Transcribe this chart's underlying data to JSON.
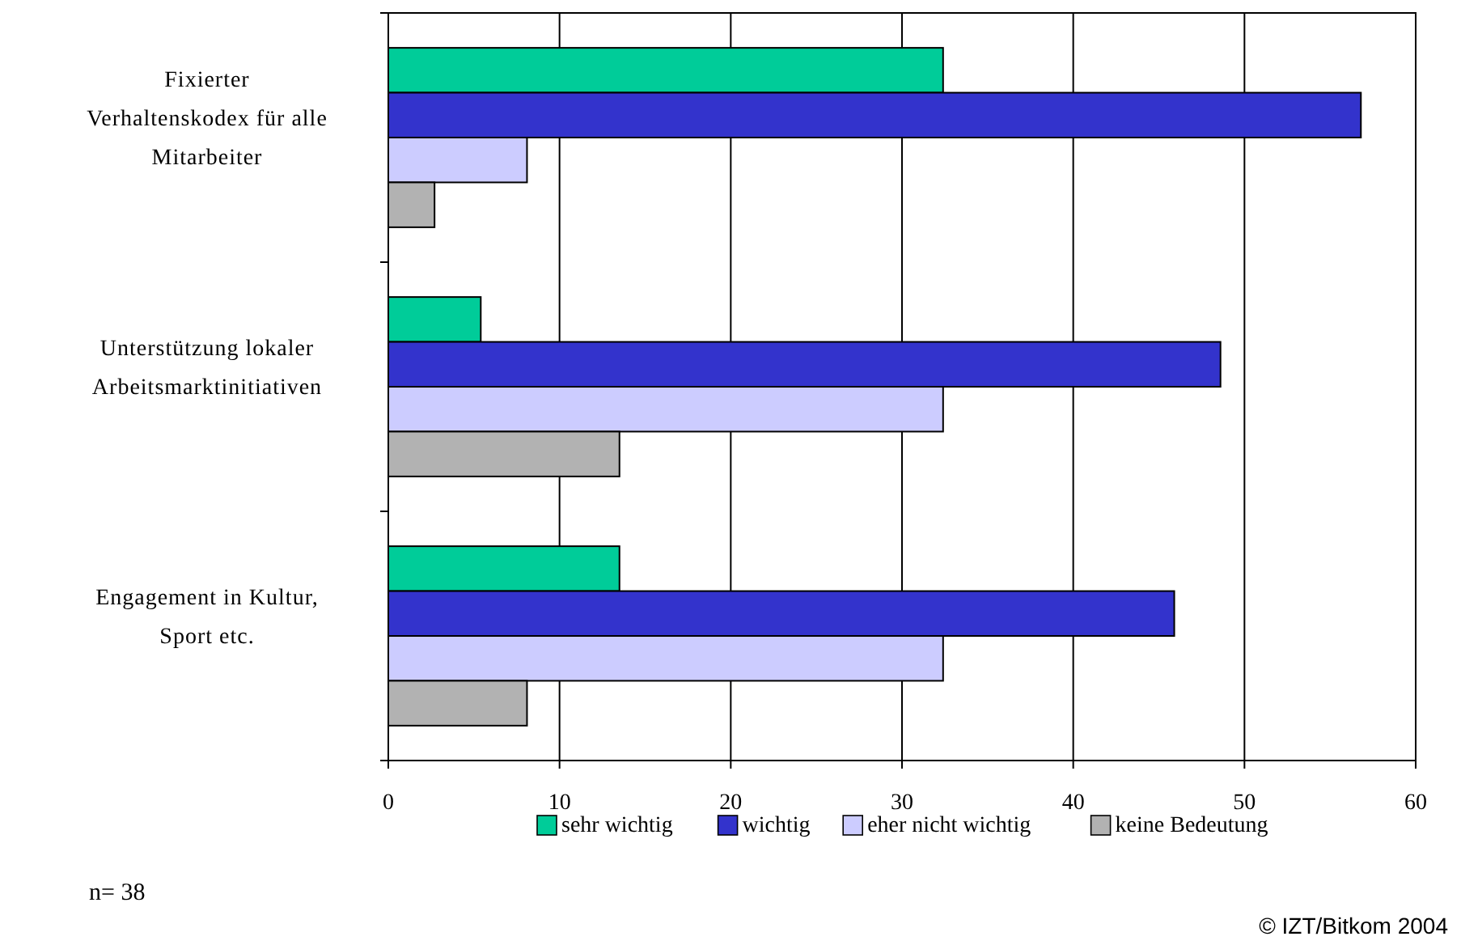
{
  "chart_data": {
    "type": "bar",
    "orientation": "horizontal",
    "categories": [
      "Fixierter Verhaltenskodex für alle Mitarbeiter",
      "Unterstützung lokaler Arbeitsmarktinitiativen",
      "Engagement in Kultur, Sport etc."
    ],
    "series": [
      {
        "name": "sehr wichtig",
        "color": "#00cc99",
        "values": [
          32.4,
          5.4,
          13.5
        ]
      },
      {
        "name": "wichtig",
        "color": "#3333cc",
        "values": [
          56.8,
          48.6,
          45.9
        ]
      },
      {
        "name": "eher nicht wichtig",
        "color": "#ccccff",
        "values": [
          8.1,
          32.4,
          32.4
        ]
      },
      {
        "name": "keine Bedeutung",
        "color": "#b2b2b2",
        "values": [
          2.7,
          13.5,
          8.1
        ]
      }
    ],
    "xlim": [
      0,
      60
    ],
    "xticks": [
      0,
      10,
      20,
      30,
      40,
      50,
      60
    ],
    "grid": "x",
    "legend": "bottom",
    "annotations": [
      "n= 38",
      "© IZT/Bitkom 2004"
    ]
  }
}
